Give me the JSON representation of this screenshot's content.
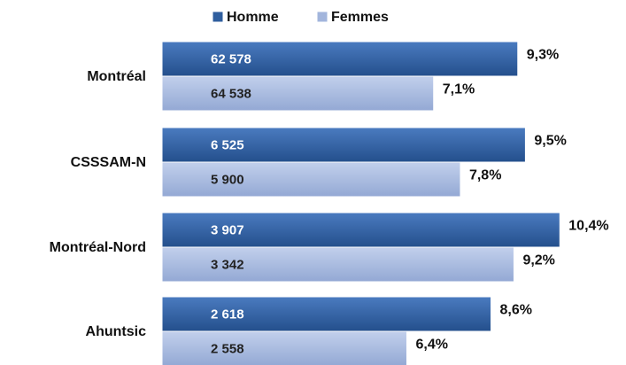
{
  "chart_data": {
    "type": "bar",
    "orientation": "horizontal",
    "categories": [
      "Montréal",
      "CSSSAM-N",
      "Montréal-Nord",
      "Ahuntsic"
    ],
    "series": [
      {
        "name": "Homme",
        "color": "#2f5e9e",
        "values": [
          9.3,
          9.5,
          10.4,
          8.6
        ],
        "value_labels": [
          "9,3%",
          "9,5%",
          "10,4%",
          "8,6%"
        ],
        "inner_labels": [
          "62 578",
          "6 525",
          "3 907",
          "2 618"
        ]
      },
      {
        "name": "Femmes",
        "color": "#a2b5dc",
        "values": [
          7.1,
          7.8,
          9.2,
          6.4
        ],
        "value_labels": [
          "7,1%",
          "7,8%",
          "9,2%",
          "6,4%"
        ],
        "inner_labels": [
          "64 538",
          "5 900",
          "3 342",
          "2 558"
        ]
      }
    ],
    "legend": "top"
  }
}
